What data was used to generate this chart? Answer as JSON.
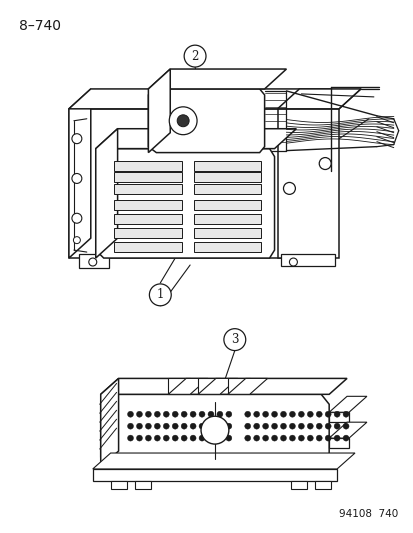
{
  "title": "8–740",
  "footer": "94108  740",
  "bg_color": "#ffffff",
  "line_color": "#1a1a1a",
  "title_fontsize": 10,
  "footer_fontsize": 7.5,
  "callout_fontsize": 8.5
}
